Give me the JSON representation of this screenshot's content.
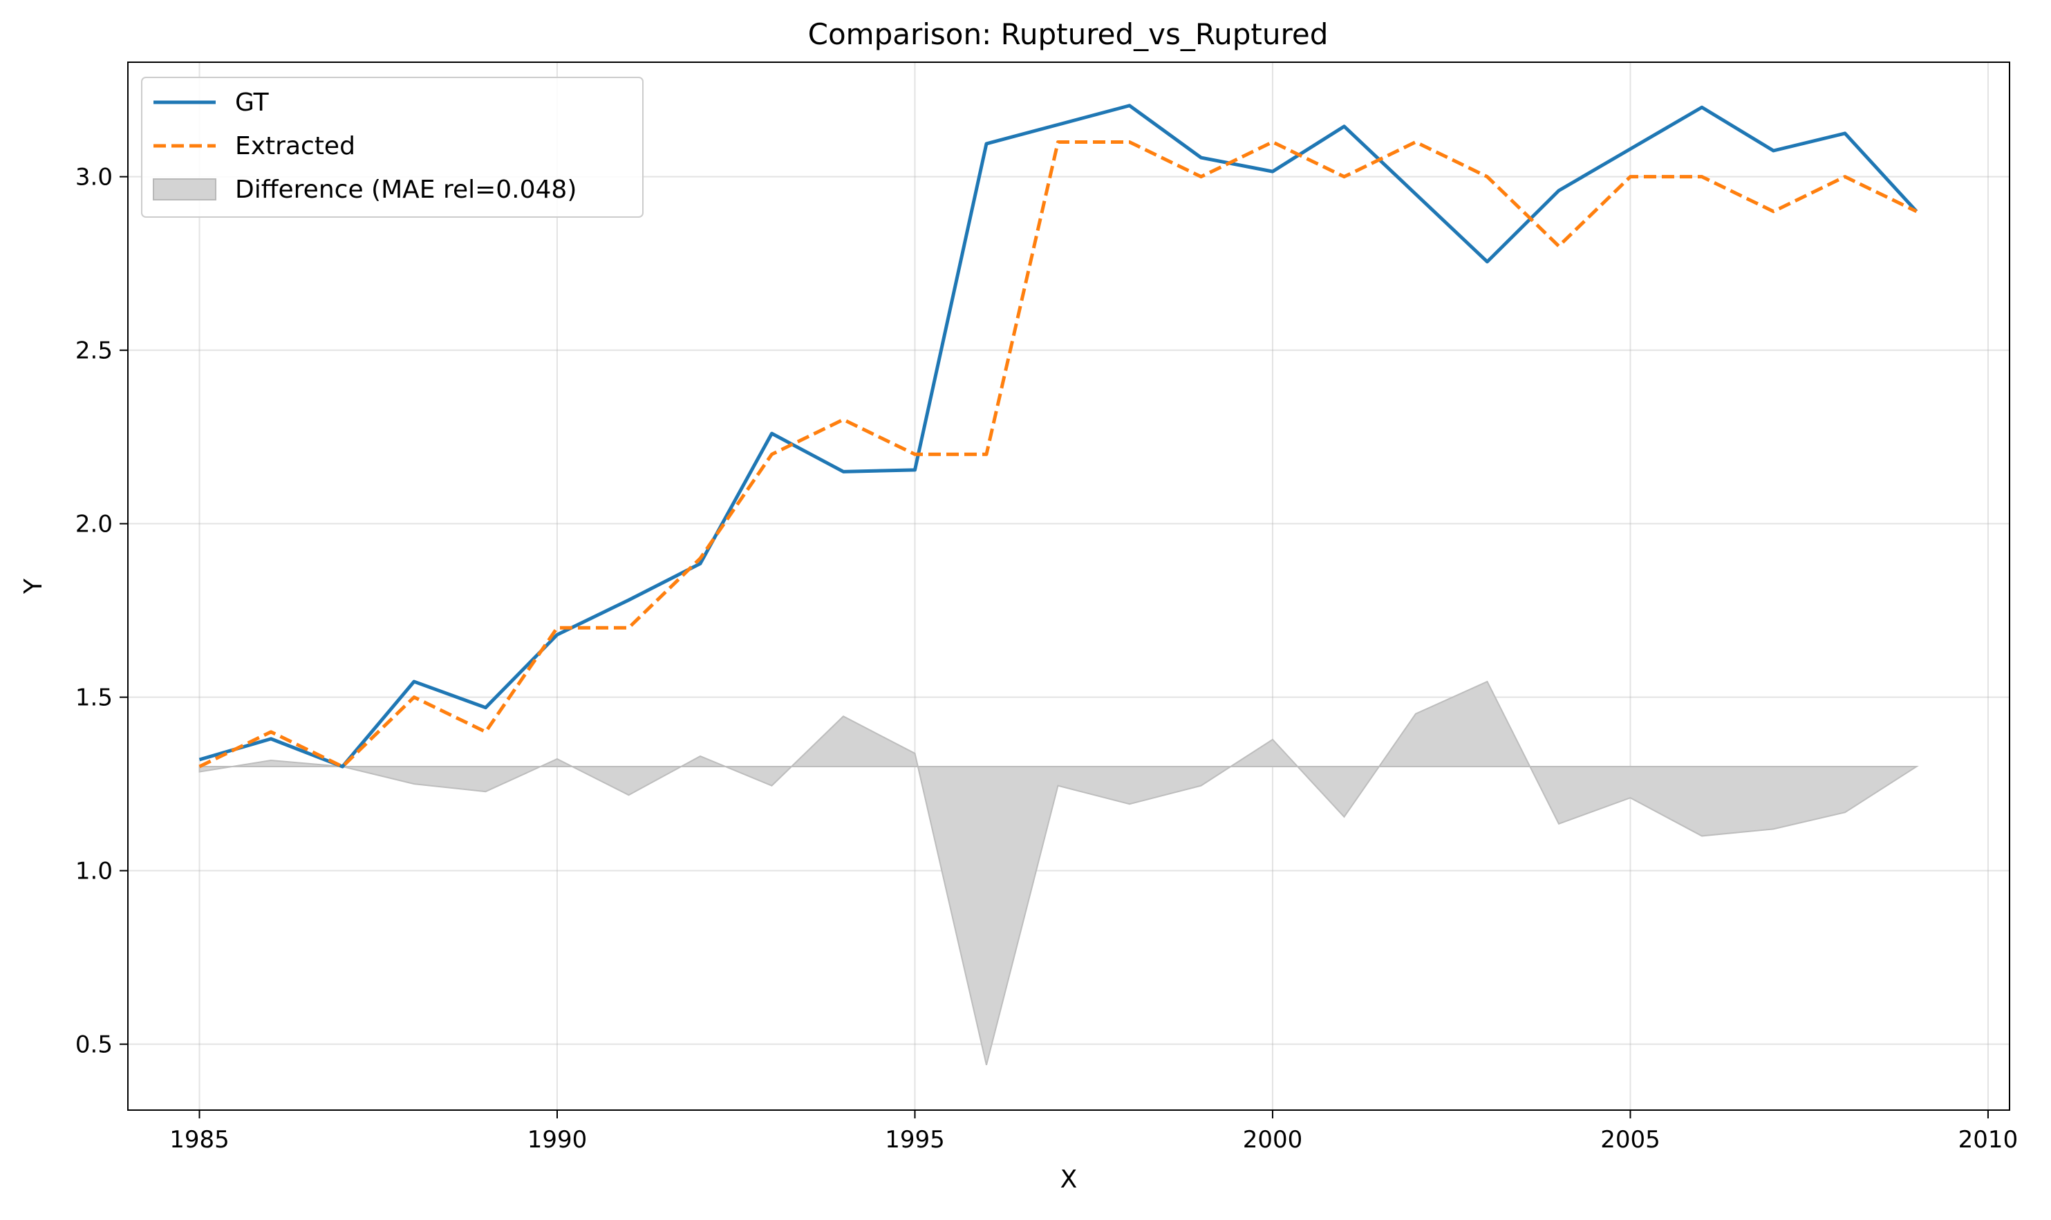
{
  "chart_data": {
    "type": "line",
    "title": "Comparison: Ruptured_vs_Ruptured",
    "xlabel": "X",
    "ylabel": "Y",
    "xlim": [
      1984,
      2010.3
    ],
    "ylim": [
      0.31,
      3.33
    ],
    "xticks": [
      1985,
      1990,
      1995,
      2000,
      2005,
      2010
    ],
    "yticks": [
      0.5,
      1.0,
      1.5,
      2.0,
      2.5,
      3.0
    ],
    "xtick_labels": [
      "1985",
      "1990",
      "1995",
      "2000",
      "2005",
      "2010"
    ],
    "ytick_labels": [
      "0.5",
      "1.0",
      "1.5",
      "2.0",
      "2.5",
      "3.0"
    ],
    "grid": true,
    "legend_position": "top-left",
    "x": [
      1985,
      1986,
      1987,
      1988,
      1989,
      1990,
      1991,
      1992,
      1993,
      1994,
      1995,
      1996,
      1997,
      1998,
      1999,
      2000,
      2001,
      2002,
      2003,
      2004,
      2005,
      2006,
      2007,
      2008,
      2009
    ],
    "series": [
      {
        "name": "GT",
        "color": "#1f77b4",
        "style": "solid",
        "values": [
          1.32,
          1.38,
          1.3,
          1.545,
          1.47,
          1.68,
          1.78,
          1.885,
          2.26,
          2.15,
          2.155,
          3.095,
          3.15,
          3.205,
          3.055,
          3.015,
          3.145,
          2.95,
          2.755,
          2.96,
          3.08,
          3.2,
          3.075,
          3.125,
          2.9
        ]
      },
      {
        "name": "Extracted",
        "color": "#ff7f0e",
        "style": "dashed",
        "values": [
          1.3,
          1.4,
          1.3,
          1.5,
          1.4,
          1.7,
          1.7,
          1.9,
          2.2,
          2.3,
          2.2,
          2.2,
          3.1,
          3.1,
          3.0,
          3.1,
          3.0,
          3.1,
          3.0,
          2.8,
          3.0,
          3.0,
          2.9,
          3.0,
          2.9
        ]
      }
    ],
    "difference": {
      "name": "Difference (MAE rel=0.048)",
      "color": "#d3d3d3",
      "baseline": 1.3,
      "values": [
        1.285,
        1.318,
        1.3,
        1.25,
        1.228,
        1.322,
        1.218,
        1.33,
        1.245,
        1.445,
        1.338,
        0.44,
        1.245,
        1.192,
        1.245,
        1.378,
        1.155,
        1.452,
        1.545,
        1.135,
        1.21,
        1.1,
        1.12,
        1.168,
        1.3
      ]
    }
  }
}
